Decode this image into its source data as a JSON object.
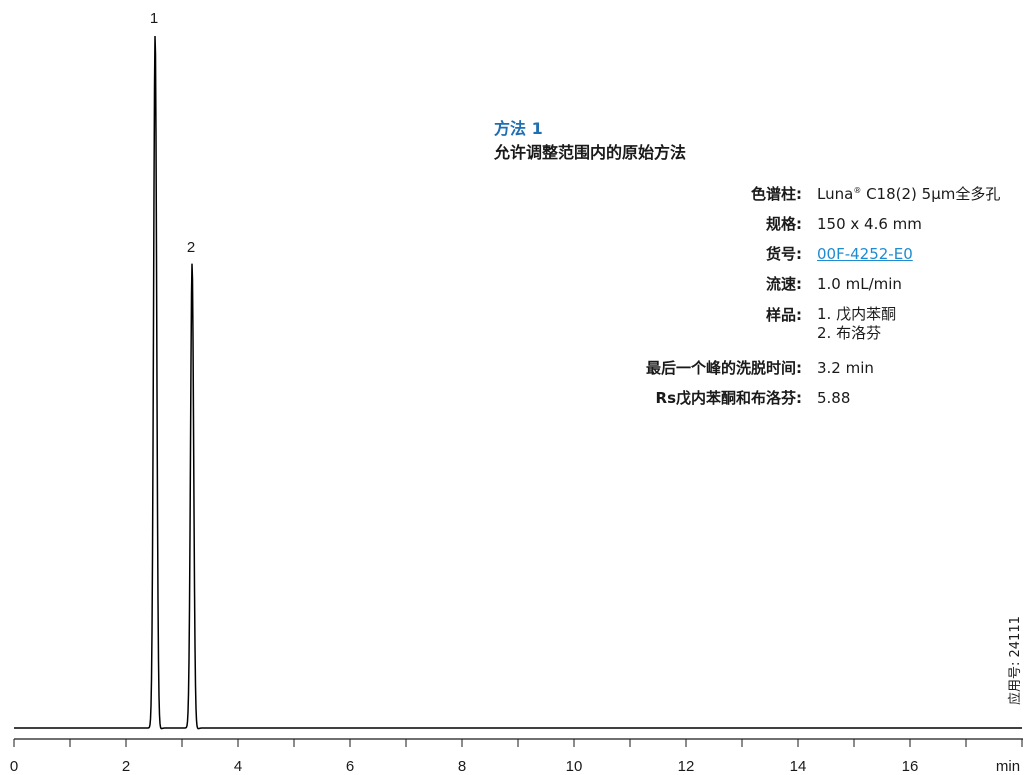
{
  "chart_data": {
    "type": "line",
    "xlabel": "min",
    "ylabel": "",
    "xlim": [
      0,
      18
    ],
    "ylim": [
      0,
      100
    ],
    "x_ticks": [
      "0",
      "2",
      "4",
      "6",
      "8",
      "10",
      "12",
      "14",
      "16"
    ],
    "x_tick_values": [
      0,
      2,
      4,
      6,
      8,
      10,
      12,
      14,
      16
    ],
    "grid": false,
    "legend": "none",
    "series": [
      {
        "color": "#000000",
        "peaks": [
          {
            "label": "1",
            "retention_time": 2.52,
            "height": 100
          },
          {
            "label": "2",
            "retention_time": 3.18,
            "height": 67
          }
        ]
      }
    ]
  },
  "method": {
    "title": "方法 1",
    "subtitle": "允许调整范围内的原始方法",
    "params": [
      {
        "label": "色谱柱:",
        "value_main": "Luna",
        "value_sup": "®",
        "value_rest": " C18(2) 5μm全多孔"
      },
      {
        "label": "规格:",
        "value": "150 x 4.6 mm"
      },
      {
        "label": "货号:",
        "value": "00F-4252-E0",
        "link": true
      },
      {
        "label": "流速:",
        "value": "1.0 mL/min"
      },
      {
        "label": "样品:",
        "lines": [
          "1. 戊内苯酮",
          "2. 布洛芬"
        ]
      },
      {
        "label": "最后一个峰的洗脱时间:",
        "value": "3.2 min"
      },
      {
        "label": "Rs戊内苯酮和布洛芬:",
        "value": "5.88"
      }
    ]
  },
  "app_number": "应用号: 24111",
  "colors": {
    "title_blue": "#1f6fb2",
    "link_blue": "#1f8bd0",
    "trace": "#000000"
  }
}
